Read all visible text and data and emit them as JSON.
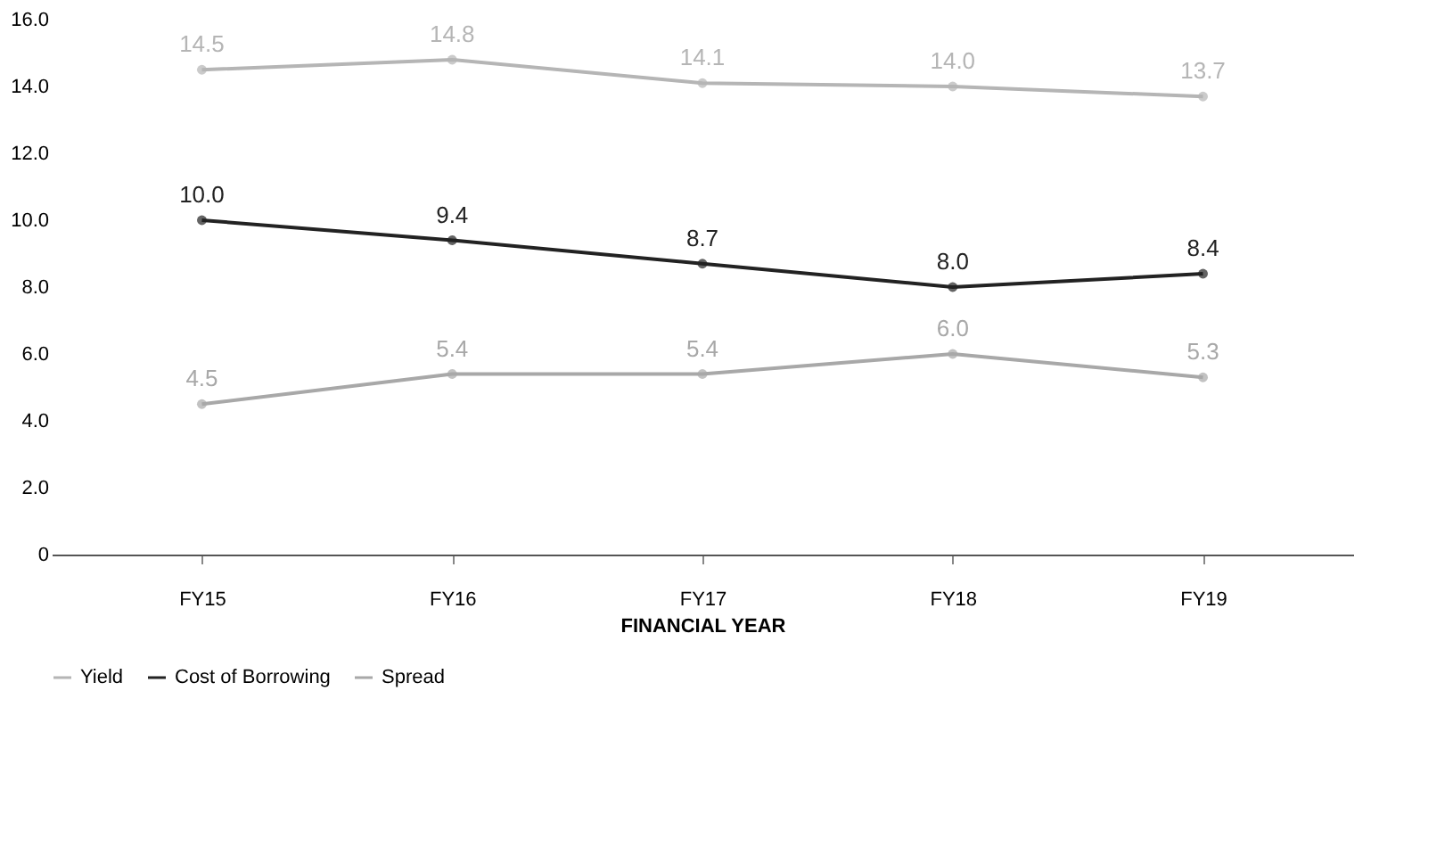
{
  "chart_data": {
    "type": "line",
    "xlabel": "FINANCIAL YEAR",
    "categories": [
      "FY15",
      "FY16",
      "FY17",
      "FY18",
      "FY19"
    ],
    "series": [
      {
        "name": "Yield",
        "color": "#b5b5b5",
        "values": [
          14.5,
          14.8,
          14.1,
          14.0,
          13.7
        ],
        "value_labels": [
          "14.5",
          "14.8",
          "14.1",
          "14.0",
          "13.7"
        ]
      },
      {
        "name": "Cost of Borrowing",
        "color": "#222222",
        "values": [
          10.0,
          9.4,
          8.7,
          8.0,
          8.4
        ],
        "value_labels": [
          "10.0",
          "9.4",
          "8.7",
          "8.0",
          "8.4"
        ]
      },
      {
        "name": "Spread",
        "color": "#a8a8a8",
        "values": [
          4.5,
          5.4,
          5.4,
          6.0,
          5.3
        ],
        "value_labels": [
          "4.5",
          "5.4",
          "5.4",
          "6.0",
          "5.3"
        ]
      }
    ],
    "ylim": [
      0,
      16
    ],
    "yticks": [
      0,
      {
        "value": 2,
        "label": "2.0"
      },
      {
        "value": 4,
        "label": "4.0"
      },
      {
        "value": 6,
        "label": "6.0"
      },
      {
        "value": 8,
        "label": "8.0"
      },
      {
        "value": 10,
        "label": "10.0"
      },
      {
        "value": 12,
        "label": "12.0"
      },
      {
        "value": 14,
        "label": "14.0"
      },
      {
        "value": 16,
        "label": "16.0"
      }
    ],
    "grid": false,
    "legend": "bottom",
    "marker": "circle",
    "line_style": "solid"
  }
}
